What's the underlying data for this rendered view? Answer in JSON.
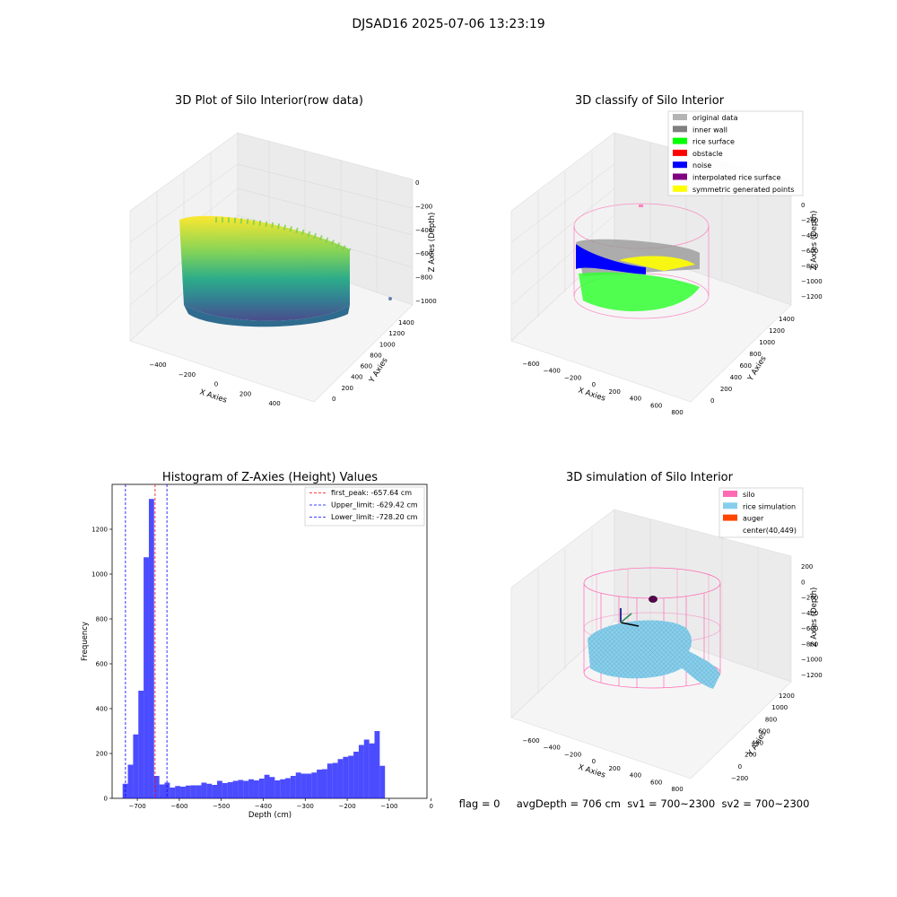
{
  "figure": {
    "suptitle": "DJSAD16 2025-07-06 13:23:19",
    "footer": "flag = 0     avgDepth = 706 cm  sv1 = 700~2300  sv2 = 700~2300"
  },
  "panels": {
    "raw": {
      "title": "3D Plot of Silo Interior(row data)",
      "xlabel": "X Axies",
      "ylabel": "Y Axies",
      "zlabel": "Z Axies (Depth)",
      "xticks": [
        "−400",
        "−200",
        "0",
        "200",
        "400"
      ],
      "yticks": [
        "0",
        "200",
        "400",
        "600",
        "800",
        "1000",
        "1200",
        "1400"
      ],
      "zticks": [
        "0",
        "−200",
        "−400",
        "−600",
        "−800",
        "−1000"
      ]
    },
    "classify": {
      "title": "3D classify of Silo Interior",
      "xlabel": "X Axies",
      "ylabel": "Y Axies",
      "zlabel": "Z Axies (Depth)",
      "xticks": [
        "−600",
        "−400",
        "−200",
        "0",
        "200",
        "400",
        "600",
        "800"
      ],
      "yticks": [
        "0",
        "200",
        "400",
        "600",
        "800",
        "1000",
        "1200",
        "1400"
      ],
      "zticks": [
        "0",
        "−200",
        "−400",
        "−600",
        "−800",
        "−1000",
        "−1200"
      ],
      "legend": [
        {
          "label": "original data",
          "color": "#b4b4b4"
        },
        {
          "label": "inner wall",
          "color": "#808080"
        },
        {
          "label": "rice surface",
          "color": "#00ff00"
        },
        {
          "label": "obstacle",
          "color": "#ff0000"
        },
        {
          "label": "noise",
          "color": "#0000ff"
        },
        {
          "label": "interpolated rice surface",
          "color": "#800080"
        },
        {
          "label": "symmetric generated points",
          "color": "#ffff00"
        }
      ]
    },
    "histogram": {
      "title": "Histogram of Z-Axies (Height) Values",
      "xlabel": "Depth (cm)",
      "ylabel": "Frequency",
      "legend": [
        {
          "label": "first_peak: -657.64 cm",
          "color": "#ff0000"
        },
        {
          "label": "Upper_limit: -629.42 cm",
          "color": "#0000ff"
        },
        {
          "label": "Lower_limit: -728.20 cm",
          "color": "#0000ff"
        }
      ]
    },
    "simulation": {
      "title": "3D simulation of Silo Interior",
      "xlabel": "X Axies",
      "ylabel": "Y Axies",
      "zlabel": "Z Axies (Depth)",
      "xticks": [
        "−600",
        "−400",
        "−200",
        "0",
        "200",
        "400",
        "600",
        "800"
      ],
      "yticks": [
        "−200",
        "0",
        "200",
        "400",
        "600",
        "800",
        "1000",
        "1200"
      ],
      "zticks": [
        "200",
        "0",
        "−200",
        "−400",
        "−600",
        "−800",
        "−1000",
        "−1200"
      ],
      "legend": [
        {
          "label": "silo",
          "color": "#ff69b4"
        },
        {
          "label": "rice simulation",
          "color": "#87ceeb"
        },
        {
          "label": "auger",
          "color": "#ff4500"
        },
        {
          "label": "center(40,449)",
          "color": "#ffffff"
        }
      ]
    }
  },
  "chart_data": {
    "type": "bar",
    "title": "Histogram of Z-Axies (Height) Values",
    "xlabel": "Depth (cm)",
    "ylabel": "Frequency",
    "xlim": [
      -760,
      -10
    ],
    "ylim": [
      0,
      1400
    ],
    "xticks": [
      -700,
      -600,
      -500,
      -400,
      -300,
      -200,
      -100,
      0
    ],
    "yticks": [
      0,
      200,
      400,
      600,
      800,
      1000,
      1200
    ],
    "bin_start": -735,
    "bin_width": 12.5,
    "values": [
      65,
      150,
      285,
      480,
      1075,
      1335,
      100,
      62,
      70,
      48,
      55,
      52,
      57,
      58,
      58,
      70,
      65,
      60,
      78,
      68,
      72,
      78,
      82,
      78,
      85,
      80,
      88,
      105,
      95,
      80,
      85,
      90,
      100,
      115,
      110,
      110,
      115,
      128,
      130,
      155,
      158,
      175,
      185,
      190,
      208,
      238,
      262,
      245,
      300,
      145
    ],
    "color": "#0000ff",
    "vlines": [
      {
        "x": -657.64,
        "color": "#ff0000"
      },
      {
        "x": -629.42,
        "color": "#0000ff"
      },
      {
        "x": -728.2,
        "color": "#0000ff"
      }
    ]
  }
}
